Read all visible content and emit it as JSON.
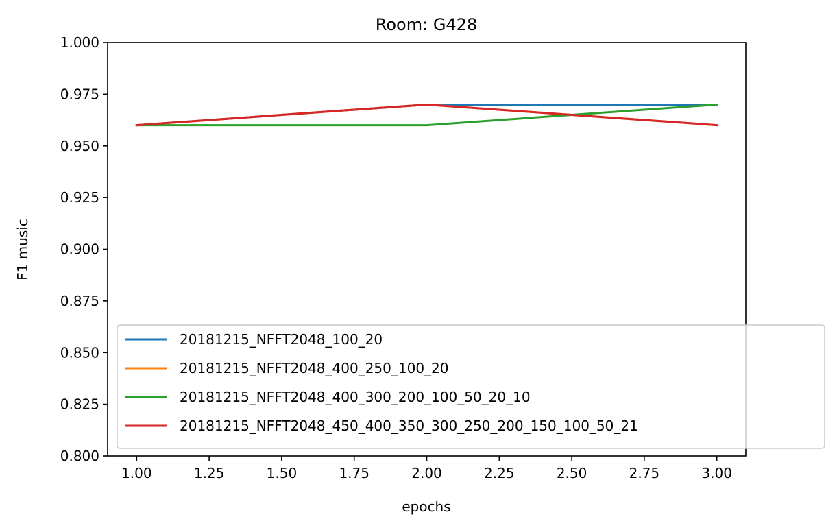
{
  "chart_data": {
    "type": "line",
    "title": "Room: G428",
    "xlabel": "epochs",
    "ylabel": "F1 music",
    "xlim": [
      0.9,
      3.1
    ],
    "ylim": [
      0.8,
      1.0
    ],
    "x_ticks": [
      1.0,
      1.25,
      1.5,
      1.75,
      2.0,
      2.25,
      2.5,
      2.75,
      3.0
    ],
    "x_tick_labels": [
      "1.00",
      "1.25",
      "1.50",
      "1.75",
      "2.00",
      "2.25",
      "2.50",
      "2.75",
      "3.00"
    ],
    "y_ticks": [
      0.8,
      0.825,
      0.85,
      0.875,
      0.9,
      0.925,
      0.95,
      0.975,
      1.0
    ],
    "y_tick_labels": [
      "0.800",
      "0.825",
      "0.850",
      "0.875",
      "0.900",
      "0.925",
      "0.950",
      "0.975",
      "1.000"
    ],
    "grid": false,
    "legend_position": "lower-left",
    "x": [
      1,
      2,
      3
    ],
    "series": [
      {
        "name": "20181215_NFFT2048_100_20",
        "color": "#1f77b4",
        "values": [
          0.96,
          0.97,
          0.97
        ]
      },
      {
        "name": "20181215_NFFT2048_400_250_100_20",
        "color": "#ff7f0e",
        "values": [
          0.96,
          0.97,
          0.96
        ]
      },
      {
        "name": "20181215_NFFT2048_400_300_200_100_50_20_10",
        "color": "#2ca02c",
        "values": [
          0.96,
          0.96,
          0.97
        ]
      },
      {
        "name": "20181215_NFFT2048_450_400_350_300_250_200_150_100_50_21",
        "color": "#d62728",
        "values": [
          0.96,
          0.97,
          0.96
        ]
      }
    ]
  }
}
